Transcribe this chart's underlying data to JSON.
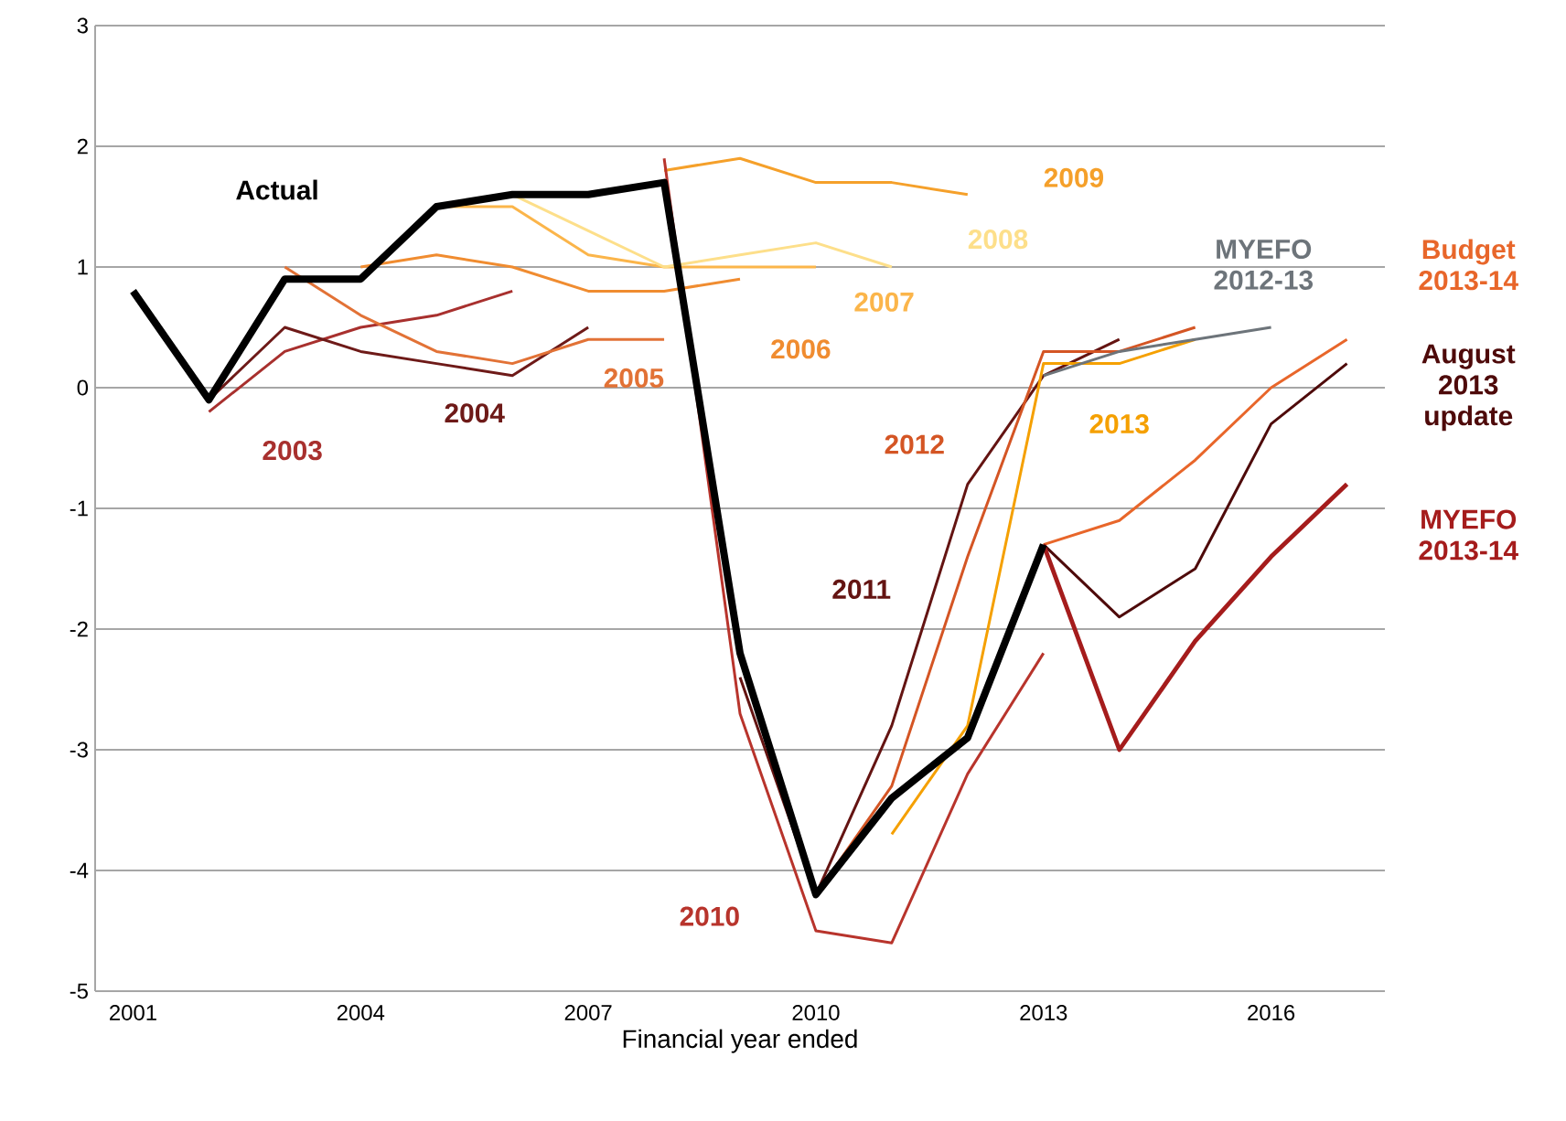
{
  "chart_data": {
    "type": "line",
    "xlabel": "Financial year ended",
    "xlim": [
      2000.5,
      2017.5
    ],
    "xticks": [
      2001,
      2004,
      2007,
      2010,
      2013,
      2016
    ],
    "ylim": [
      -5,
      3
    ],
    "yticks": [
      -5,
      -4,
      -3,
      -2,
      -1,
      0,
      1,
      2,
      3
    ],
    "grid": "y",
    "marker": "none",
    "line_style": "solid",
    "series": [
      {
        "name": "2003",
        "color": "#a8302e",
        "x": [
          2002,
          2003,
          2004,
          2005,
          2006
        ],
        "values": [
          -0.2,
          0.3,
          0.5,
          0.6,
          0.8
        ]
      },
      {
        "name": "2004",
        "color": "#6e1a18",
        "x": [
          2002,
          2003,
          2004,
          2005,
          2006,
          2007
        ],
        "values": [
          -0.1,
          0.5,
          0.3,
          0.2,
          0.1,
          0.5
        ]
      },
      {
        "name": "2005",
        "color": "#e27236",
        "x": [
          2003,
          2004,
          2005,
          2006,
          2007,
          2008
        ],
        "values": [
          1.0,
          0.6,
          0.3,
          0.2,
          0.4,
          0.4
        ]
      },
      {
        "name": "2006",
        "color": "#f08c30",
        "x": [
          2004,
          2005,
          2006,
          2007,
          2008,
          2009
        ],
        "values": [
          1.0,
          1.1,
          1.0,
          0.8,
          0.8,
          0.9
        ]
      },
      {
        "name": "2007",
        "color": "#fbb54a",
        "x": [
          2005,
          2006,
          2007,
          2008,
          2009,
          2010
        ],
        "values": [
          1.5,
          1.5,
          1.1,
          1.0,
          1.0,
          1.0
        ]
      },
      {
        "name": "2008",
        "color": "#fddf8a",
        "x": [
          2006,
          2007,
          2008,
          2009,
          2010,
          2011
        ],
        "values": [
          1.6,
          1.3,
          1.0,
          1.1,
          1.2,
          1.0
        ]
      },
      {
        "name": "2009",
        "color": "#f5a02a",
        "x": [
          2008,
          2009,
          2010,
          2011,
          2012
        ],
        "values": [
          1.8,
          1.9,
          1.7,
          1.7,
          1.6
        ]
      },
      {
        "name": "2010",
        "color": "#b8342c",
        "x": [
          2008,
          2009,
          2010,
          2011,
          2012,
          2013
        ],
        "values": [
          1.9,
          -2.7,
          -4.5,
          -4.6,
          -3.2,
          -2.2
        ]
      },
      {
        "name": "2011",
        "color": "#641412",
        "x": [
          2009,
          2010,
          2011,
          2012,
          2013,
          2014
        ],
        "values": [
          -2.4,
          -4.2,
          -2.8,
          -0.8,
          0.1,
          0.4
        ]
      },
      {
        "name": "2012",
        "color": "#d45524",
        "x": [
          2010,
          2011,
          2012,
          2013,
          2014,
          2015
        ],
        "values": [
          -4.2,
          -3.3,
          -1.4,
          0.3,
          0.3,
          0.5
        ]
      },
      {
        "name": "2013",
        "color": "#f5a000",
        "x": [
          2011,
          2012,
          2013,
          2014,
          2015
        ],
        "values": [
          -3.7,
          -2.8,
          0.2,
          0.2,
          0.4
        ]
      },
      {
        "name": "MYEFO 2012-13",
        "color": "#6d747a",
        "x": [
          2013,
          2014,
          2015,
          2016
        ],
        "values": [
          0.1,
          0.3,
          0.4,
          0.5
        ]
      },
      {
        "name": "Budget 2013-14",
        "color": "#e8662a",
        "x": [
          2013,
          2014,
          2015,
          2016,
          2017
        ],
        "values": [
          -1.3,
          -1.1,
          -0.6,
          0.0,
          0.4
        ]
      },
      {
        "name": "August 2013 update",
        "color": "#4e0a0a",
        "x": [
          2013,
          2014,
          2015,
          2016,
          2017
        ],
        "values": [
          -1.3,
          -1.9,
          -1.5,
          -0.3,
          0.2
        ]
      },
      {
        "name": "MYEFO 2013-14",
        "color": "#a51c1c",
        "x": [
          2013,
          2014,
          2015,
          2016,
          2017
        ],
        "values": [
          -1.3,
          -3.0,
          -2.1,
          -1.4,
          -0.8
        ]
      },
      {
        "name": "Actual",
        "color": "#000000",
        "x": [
          2001,
          2002,
          2003,
          2004,
          2005,
          2006,
          2007,
          2008,
          2009,
          2010,
          2011,
          2012,
          2013
        ],
        "values": [
          0.8,
          -0.1,
          0.9,
          0.9,
          1.5,
          1.6,
          1.6,
          1.7,
          -2.2,
          -4.2,
          -3.4,
          -2.9,
          -1.3
        ]
      }
    ]
  }
}
